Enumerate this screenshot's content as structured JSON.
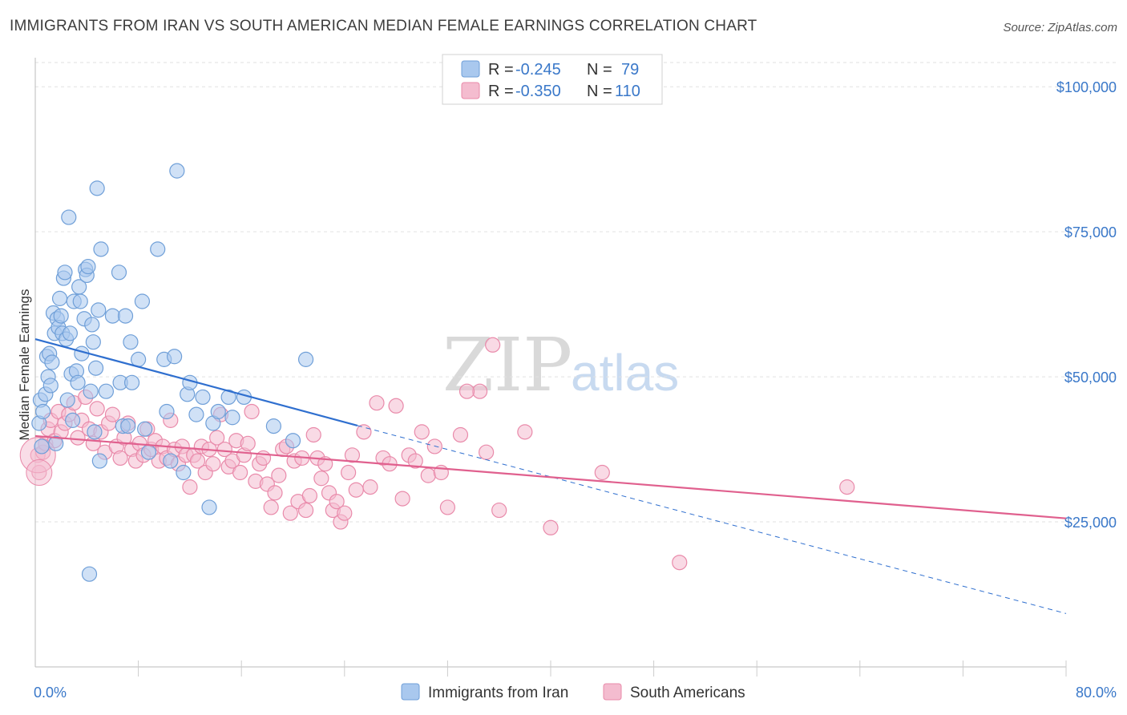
{
  "title": "IMMIGRANTS FROM IRAN VS SOUTH AMERICAN MEDIAN FEMALE EARNINGS CORRELATION CHART",
  "source": "Source: ZipAtlas.com",
  "watermark": {
    "zip": "ZIP",
    "atlas": "atlas"
  },
  "legend": {
    "r_label": "R =",
    "n_label": "N =",
    "series": [
      {
        "r": "-0.245",
        "n": "79"
      },
      {
        "r": "-0.350",
        "n": "110"
      }
    ]
  },
  "bottom_legend": [
    "Immigrants from Iran",
    "South Americans"
  ],
  "colors": {
    "blue_fill": "#a9c8ee",
    "blue_stroke": "#6f9fd8",
    "blue_line": "#2f6fcf",
    "pink_fill": "#f4bccf",
    "pink_stroke": "#e98aaa",
    "pink_line": "#e0608e",
    "tick_text": "#3a78c9"
  },
  "chart_data": {
    "type": "scatter",
    "title": "IMMIGRANTS FROM IRAN VS SOUTH AMERICAN MEDIAN FEMALE EARNINGS CORRELATION CHART",
    "xlabel": "",
    "ylabel": "Median Female Earnings",
    "xlim": [
      0,
      80
    ],
    "ylim": [
      0,
      105000
    ],
    "x_tick_labels": [
      "0.0%",
      "80.0%"
    ],
    "y_ticks": [
      25000,
      50000,
      75000,
      100000
    ],
    "y_tick_labels": [
      "$25,000",
      "$50,000",
      "$75,000",
      "$100,000"
    ],
    "grid": true,
    "legend_position": "top-center",
    "series": [
      {
        "name": "Immigrants from Iran",
        "color": "#a9c8ee",
        "trend": {
          "x": [
            0,
            25
          ],
          "y": [
            56500,
            41600
          ],
          "dashed_extension": {
            "x": [
              25,
              80
            ],
            "y": [
              41600,
              9200
            ]
          }
        },
        "points": [
          [
            0.3,
            42000
          ],
          [
            0.4,
            46000
          ],
          [
            0.5,
            38000
          ],
          [
            0.6,
            44000
          ],
          [
            0.8,
            47000
          ],
          [
            0.9,
            53500
          ],
          [
            1.0,
            50000
          ],
          [
            1.1,
            54000
          ],
          [
            1.2,
            48500
          ],
          [
            1.3,
            52500
          ],
          [
            1.4,
            61000
          ],
          [
            1.5,
            57500
          ],
          [
            1.6,
            38500
          ],
          [
            1.7,
            60000
          ],
          [
            1.8,
            58500
          ],
          [
            1.9,
            63500
          ],
          [
            2.0,
            60500
          ],
          [
            2.1,
            57500
          ],
          [
            2.2,
            67000
          ],
          [
            2.3,
            68000
          ],
          [
            2.4,
            56500
          ],
          [
            2.5,
            46000
          ],
          [
            2.6,
            77500
          ],
          [
            2.7,
            57500
          ],
          [
            2.8,
            50500
          ],
          [
            2.9,
            42500
          ],
          [
            3.0,
            63000
          ],
          [
            3.2,
            51000
          ],
          [
            3.3,
            49000
          ],
          [
            3.4,
            65500
          ],
          [
            3.5,
            63000
          ],
          [
            3.6,
            54000
          ],
          [
            3.8,
            60000
          ],
          [
            3.9,
            68500
          ],
          [
            4.0,
            67500
          ],
          [
            4.1,
            69000
          ],
          [
            4.2,
            16000
          ],
          [
            4.3,
            47500
          ],
          [
            4.4,
            59000
          ],
          [
            4.5,
            56000
          ],
          [
            4.6,
            40500
          ],
          [
            4.7,
            51500
          ],
          [
            4.8,
            82500
          ],
          [
            4.9,
            61500
          ],
          [
            5.0,
            35500
          ],
          [
            5.1,
            72000
          ],
          [
            5.5,
            47500
          ],
          [
            6.0,
            60500
          ],
          [
            6.5,
            68000
          ],
          [
            6.6,
            49000
          ],
          [
            6.8,
            41500
          ],
          [
            7.0,
            60500
          ],
          [
            7.2,
            41500
          ],
          [
            7.4,
            56000
          ],
          [
            7.5,
            49000
          ],
          [
            8.0,
            53000
          ],
          [
            8.3,
            63000
          ],
          [
            8.8,
            37000
          ],
          [
            9.5,
            72000
          ],
          [
            10.0,
            53000
          ],
          [
            10.2,
            44000
          ],
          [
            10.5,
            35500
          ],
          [
            10.8,
            53500
          ],
          [
            11.0,
            85500
          ],
          [
            11.5,
            33500
          ],
          [
            11.8,
            47000
          ],
          [
            12.0,
            49000
          ],
          [
            12.5,
            43500
          ],
          [
            13.0,
            46500
          ],
          [
            13.5,
            27500
          ],
          [
            13.8,
            42000
          ],
          [
            14.2,
            44000
          ],
          [
            15.0,
            46500
          ],
          [
            15.3,
            43000
          ],
          [
            16.2,
            46500
          ],
          [
            18.5,
            41500
          ],
          [
            20.0,
            39000
          ],
          [
            21.0,
            53000
          ],
          [
            8.5,
            41000
          ]
        ]
      },
      {
        "name": "South Americans",
        "color": "#f4bccf",
        "trend": {
          "x": [
            0,
            80
          ],
          "y": [
            39800,
            25600
          ]
        },
        "points": [
          [
            0.2,
            36500
          ],
          [
            0.3,
            33500
          ],
          [
            0.6,
            37000
          ],
          [
            0.8,
            38500
          ],
          [
            1.0,
            41000
          ],
          [
            1.2,
            42500
          ],
          [
            1.5,
            39000
          ],
          [
            1.8,
            44000
          ],
          [
            2.0,
            40500
          ],
          [
            2.3,
            42000
          ],
          [
            2.6,
            43500
          ],
          [
            3.0,
            45500
          ],
          [
            3.3,
            39500
          ],
          [
            3.6,
            42500
          ],
          [
            3.9,
            46500
          ],
          [
            4.2,
            41000
          ],
          [
            4.5,
            38500
          ],
          [
            4.8,
            44500
          ],
          [
            5.1,
            40500
          ],
          [
            5.4,
            37000
          ],
          [
            5.7,
            42000
          ],
          [
            6.0,
            43500
          ],
          [
            6.3,
            38000
          ],
          [
            6.6,
            36000
          ],
          [
            6.9,
            39500
          ],
          [
            7.2,
            42000
          ],
          [
            7.5,
            37500
          ],
          [
            7.8,
            35500
          ],
          [
            8.1,
            38500
          ],
          [
            8.4,
            36500
          ],
          [
            8.7,
            41000
          ],
          [
            9.0,
            37500
          ],
          [
            9.3,
            39000
          ],
          [
            9.6,
            35500
          ],
          [
            9.9,
            38000
          ],
          [
            10.2,
            36000
          ],
          [
            10.5,
            42500
          ],
          [
            10.8,
            37500
          ],
          [
            11.1,
            35000
          ],
          [
            11.4,
            38000
          ],
          [
            11.7,
            36500
          ],
          [
            12.0,
            31000
          ],
          [
            12.3,
            36500
          ],
          [
            12.6,
            35500
          ],
          [
            12.9,
            38000
          ],
          [
            13.2,
            33500
          ],
          [
            13.5,
            37500
          ],
          [
            13.8,
            35000
          ],
          [
            14.1,
            39500
          ],
          [
            14.4,
            43500
          ],
          [
            14.7,
            37500
          ],
          [
            15.0,
            34500
          ],
          [
            15.3,
            35500
          ],
          [
            15.6,
            39000
          ],
          [
            15.9,
            33500
          ],
          [
            16.2,
            36500
          ],
          [
            16.5,
            38500
          ],
          [
            16.8,
            44000
          ],
          [
            17.1,
            32000
          ],
          [
            17.4,
            35000
          ],
          [
            17.7,
            36000
          ],
          [
            18.0,
            31500
          ],
          [
            18.3,
            27500
          ],
          [
            18.6,
            30000
          ],
          [
            18.9,
            33000
          ],
          [
            19.2,
            37500
          ],
          [
            19.5,
            38000
          ],
          [
            19.8,
            26500
          ],
          [
            20.1,
            35500
          ],
          [
            20.4,
            28500
          ],
          [
            20.7,
            36000
          ],
          [
            21.0,
            27000
          ],
          [
            21.3,
            29500
          ],
          [
            21.6,
            40000
          ],
          [
            21.9,
            36000
          ],
          [
            22.2,
            32500
          ],
          [
            22.5,
            35000
          ],
          [
            22.8,
            30000
          ],
          [
            23.1,
            27000
          ],
          [
            23.4,
            28500
          ],
          [
            23.7,
            25000
          ],
          [
            24.0,
            26500
          ],
          [
            24.3,
            33500
          ],
          [
            24.6,
            36500
          ],
          [
            24.9,
            30500
          ],
          [
            25.5,
            40500
          ],
          [
            26.0,
            31000
          ],
          [
            26.5,
            45500
          ],
          [
            27.0,
            36000
          ],
          [
            27.5,
            35000
          ],
          [
            28.0,
            45000
          ],
          [
            28.5,
            29000
          ],
          [
            29.0,
            36500
          ],
          [
            29.5,
            35500
          ],
          [
            30.0,
            40500
          ],
          [
            30.5,
            33000
          ],
          [
            31.0,
            38000
          ],
          [
            31.5,
            33500
          ],
          [
            32.0,
            27500
          ],
          [
            33.0,
            40000
          ],
          [
            34.5,
            47500
          ],
          [
            35.0,
            37000
          ],
          [
            36.0,
            27000
          ],
          [
            35.5,
            55500
          ],
          [
            33.5,
            47500
          ],
          [
            38.0,
            40500
          ],
          [
            40.0,
            24000
          ],
          [
            44.0,
            33500
          ],
          [
            50.0,
            18000
          ],
          [
            63.0,
            31000
          ]
        ]
      }
    ]
  }
}
